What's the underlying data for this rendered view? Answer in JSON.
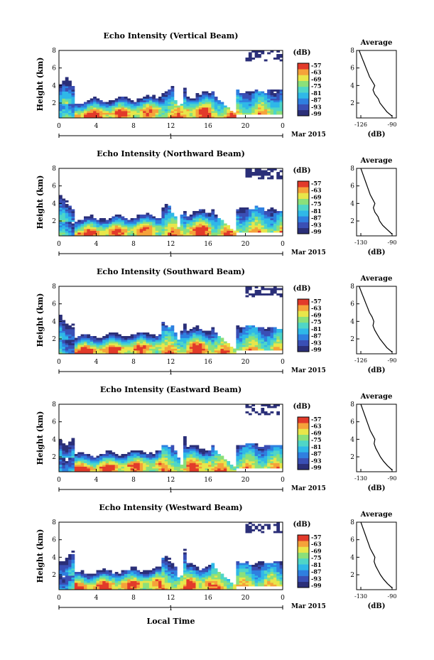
{
  "figure": {
    "xlabel": "Local Time",
    "date_label": "Mar 2015",
    "day_tick_label": "1",
    "unit_label": "(dB)",
    "colorbar_ticks": [
      "-57",
      "-63",
      "-69",
      "-75",
      "-81",
      "-87",
      "-93",
      "-99"
    ]
  },
  "colors": {
    "background_low": "#3b3f7e",
    "colormap": [
      "#2b2f78",
      "#3a4fb5",
      "#2f7fe0",
      "#2fb8e8",
      "#4fd6c7",
      "#8be07a",
      "#e8e64a",
      "#f5a23a",
      "#e23a2a"
    ]
  },
  "chart_data": [
    {
      "type": "heatmap",
      "title": "Echo Intensity (Vertical Beam)",
      "ylabel": "Height (km)",
      "x_ticks": [
        "0",
        "4",
        "8",
        "12",
        "16",
        "20",
        "0"
      ],
      "y_ticks": [
        "2",
        "4",
        "6",
        "8"
      ],
      "xlim": [
        0,
        24
      ],
      "ylim": [
        0.3,
        8
      ],
      "clim": [
        -99,
        -57
      ],
      "average": {
        "title": "Average",
        "xlabel": "(dB)",
        "x_ticks": [
          "-126",
          "-90"
        ],
        "y_ticks": [
          "2",
          "4",
          "6",
          "8"
        ],
        "height": [
          0.5,
          1,
          1.5,
          2,
          2.5,
          3,
          3.5,
          4,
          4.5,
          5,
          5.5,
          6,
          6.5,
          7,
          7.5,
          8
        ],
        "value": [
          -90,
          -96,
          -100,
          -104,
          -106,
          -110,
          -112,
          -110,
          -113,
          -116,
          -118,
          -120,
          -122,
          -124,
          -126,
          -128
        ]
      }
    },
    {
      "type": "heatmap",
      "title": "Echo Intensity (Northward Beam)",
      "ylabel": "Height (km)",
      "x_ticks": [
        "0",
        "4",
        "8",
        "12",
        "16",
        "20",
        "0"
      ],
      "y_ticks": [
        "2",
        "4",
        "6",
        "8"
      ],
      "xlim": [
        0,
        24
      ],
      "ylim": [
        0.3,
        8
      ],
      "clim": [
        -99,
        -57
      ],
      "average": {
        "title": "Average",
        "xlabel": "(dB)",
        "x_ticks": [
          "-130",
          "-90"
        ],
        "y_ticks": [
          "2",
          "4",
          "6",
          "8"
        ],
        "height": [
          0.5,
          1,
          1.5,
          2,
          2.5,
          3,
          3.5,
          4,
          4.5,
          5,
          5.5,
          6,
          6.5,
          7,
          7.5,
          8
        ],
        "value": [
          -90,
          -96,
          -102,
          -106,
          -108,
          -112,
          -114,
          -112,
          -115,
          -118,
          -120,
          -122,
          -124,
          -126,
          -128,
          -130
        ]
      }
    },
    {
      "type": "heatmap",
      "title": "Echo Intensity (Southward Beam)",
      "ylabel": "Height (km)",
      "x_ticks": [
        "0",
        "4",
        "8",
        "12",
        "16",
        "20",
        "0"
      ],
      "y_ticks": [
        "2",
        "4",
        "6",
        "8"
      ],
      "xlim": [
        0,
        24
      ],
      "ylim": [
        0.3,
        8
      ],
      "clim": [
        -99,
        -57
      ],
      "average": {
        "title": "Average",
        "xlabel": "(dB)",
        "x_ticks": [
          "-126",
          "-90"
        ],
        "y_ticks": [
          "2",
          "4",
          "6",
          "8"
        ],
        "height": [
          0.5,
          1,
          1.5,
          2,
          2.5,
          3,
          3.5,
          4,
          4.5,
          5,
          5.5,
          6,
          6.5,
          7,
          7.5,
          8
        ],
        "value": [
          -90,
          -96,
          -100,
          -104,
          -107,
          -110,
          -112,
          -111,
          -113,
          -116,
          -118,
          -120,
          -122,
          -124,
          -126,
          -128
        ]
      }
    },
    {
      "type": "heatmap",
      "title": "Echo Intensity (Eastward Beam)",
      "ylabel": "Height (km)",
      "x_ticks": [
        "0",
        "4",
        "8",
        "12",
        "16",
        "20",
        "0"
      ],
      "y_ticks": [
        "2",
        "4",
        "6",
        "8"
      ],
      "xlim": [
        0,
        24
      ],
      "ylim": [
        0.3,
        8
      ],
      "clim": [
        -99,
        -57
      ],
      "average": {
        "title": "Average",
        "xlabel": "(dB)",
        "x_ticks": [
          "-130",
          "-90"
        ],
        "y_ticks": [
          "2",
          "4",
          "6",
          "8"
        ],
        "height": [
          0.5,
          1,
          1.5,
          2,
          2.5,
          3,
          3.5,
          4,
          4.5,
          5,
          5.5,
          6,
          6.5,
          7,
          7.5,
          8
        ],
        "value": [
          -90,
          -96,
          -101,
          -105,
          -108,
          -111,
          -113,
          -112,
          -115,
          -118,
          -120,
          -122,
          -124,
          -126,
          -128,
          -130
        ]
      }
    },
    {
      "type": "heatmap",
      "title": "Echo Intensity (Westward Beam)",
      "ylabel": "Height (km)",
      "x_ticks": [
        "0",
        "4",
        "8",
        "12",
        "16",
        "20",
        "0"
      ],
      "y_ticks": [
        "2",
        "4",
        "6",
        "8"
      ],
      "xlim": [
        0,
        24
      ],
      "ylim": [
        0.3,
        8
      ],
      "clim": [
        -99,
        -57
      ],
      "average": {
        "title": "Average",
        "xlabel": "(dB)",
        "x_ticks": [
          "-130",
          "-90"
        ],
        "y_ticks": [
          "2",
          "4",
          "6",
          "8"
        ],
        "height": [
          0.5,
          1,
          1.5,
          2,
          2.5,
          3,
          3.5,
          4,
          4.5,
          5,
          5.5,
          6,
          6.5,
          7,
          7.5,
          8
        ],
        "value": [
          -90,
          -96,
          -101,
          -105,
          -108,
          -111,
          -113,
          -112,
          -115,
          -118,
          -120,
          -122,
          -124,
          -126,
          -128,
          -130
        ]
      }
    }
  ]
}
